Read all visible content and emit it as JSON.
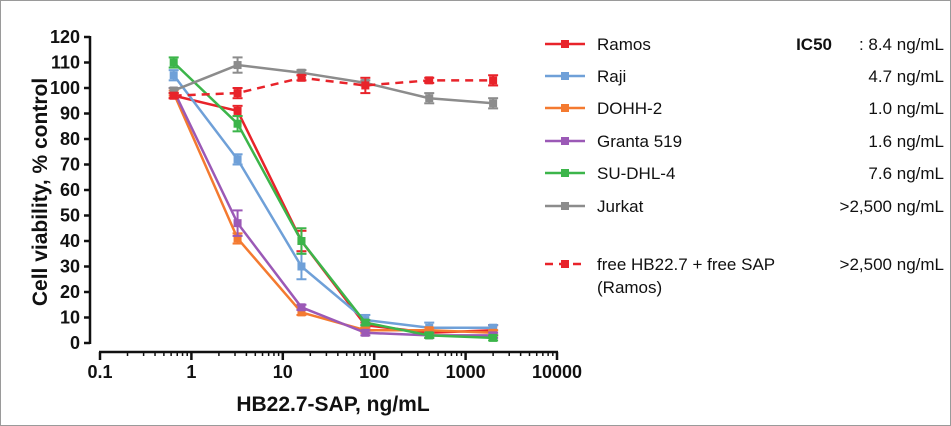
{
  "chart_data": {
    "type": "line",
    "x_scale": "log",
    "xlabel": "HB22.7-SAP, ng/mL",
    "ylabel": "Cell viability, % control",
    "xlim": [
      0.1,
      10000
    ],
    "ylim": [
      0,
      120
    ],
    "x_ticks": [
      "0.1",
      "1",
      "10",
      "100",
      "1000",
      "10000"
    ],
    "y_ticks": [
      "0",
      "10",
      "20",
      "30",
      "40",
      "50",
      "60",
      "70",
      "80",
      "90",
      "100",
      "110",
      "120"
    ],
    "x": [
      0.64,
      3.2,
      16,
      80,
      400,
      2000
    ],
    "legend_header": "IC50",
    "series": [
      {
        "name": "Ramos",
        "color": "#e8232a",
        "dashed": false,
        "ic50": ": 8.4 ng/mL",
        "values": [
          97,
          91,
          40,
          7,
          4,
          5
        ],
        "errors": [
          1,
          2,
          4,
          1,
          1,
          2
        ]
      },
      {
        "name": "Raji",
        "color": "#6fa0d8",
        "dashed": false,
        "ic50": "4.7 ng/mL",
        "values": [
          105,
          72,
          30,
          9,
          6,
          6
        ],
        "errors": [
          2,
          2,
          5,
          2,
          2,
          1
        ]
      },
      {
        "name": "DOHH-2",
        "color": "#f47a30",
        "dashed": false,
        "ic50": "1.0 ng/mL",
        "values": [
          98,
          41,
          12,
          5,
          5,
          4
        ],
        "errors": [
          1,
          2,
          1,
          1,
          1,
          1
        ]
      },
      {
        "name": "Granta 519",
        "color": "#9b59b6",
        "dashed": false,
        "ic50": "1.6 ng/mL",
        "values": [
          99,
          47,
          14,
          4,
          3,
          3
        ],
        "errors": [
          1,
          5,
          1,
          1,
          1,
          1
        ]
      },
      {
        "name": "SU-DHL-4",
        "color": "#3cb54a",
        "dashed": false,
        "ic50": "7.6 ng/mL",
        "values": [
          110,
          86,
          40,
          8,
          3,
          2
        ],
        "errors": [
          2,
          3,
          5,
          1,
          1,
          1
        ]
      },
      {
        "name": "Jurkat",
        "color": "#8c8c8c",
        "dashed": false,
        "ic50": ">2,500 ng/mL",
        "values": [
          99,
          109,
          106,
          102,
          96,
          94
        ],
        "errors": [
          1,
          3,
          1,
          1,
          2,
          2
        ]
      },
      {
        "name": "free HB22.7 + free SAP",
        "name_line2": "(Ramos)",
        "color": "#e8232a",
        "dashed": true,
        "ic50": ">2,500 ng/mL",
        "values": [
          97,
          98,
          104,
          101,
          103,
          103
        ],
        "errors": [
          1,
          2,
          1,
          3,
          1,
          2
        ]
      }
    ]
  }
}
